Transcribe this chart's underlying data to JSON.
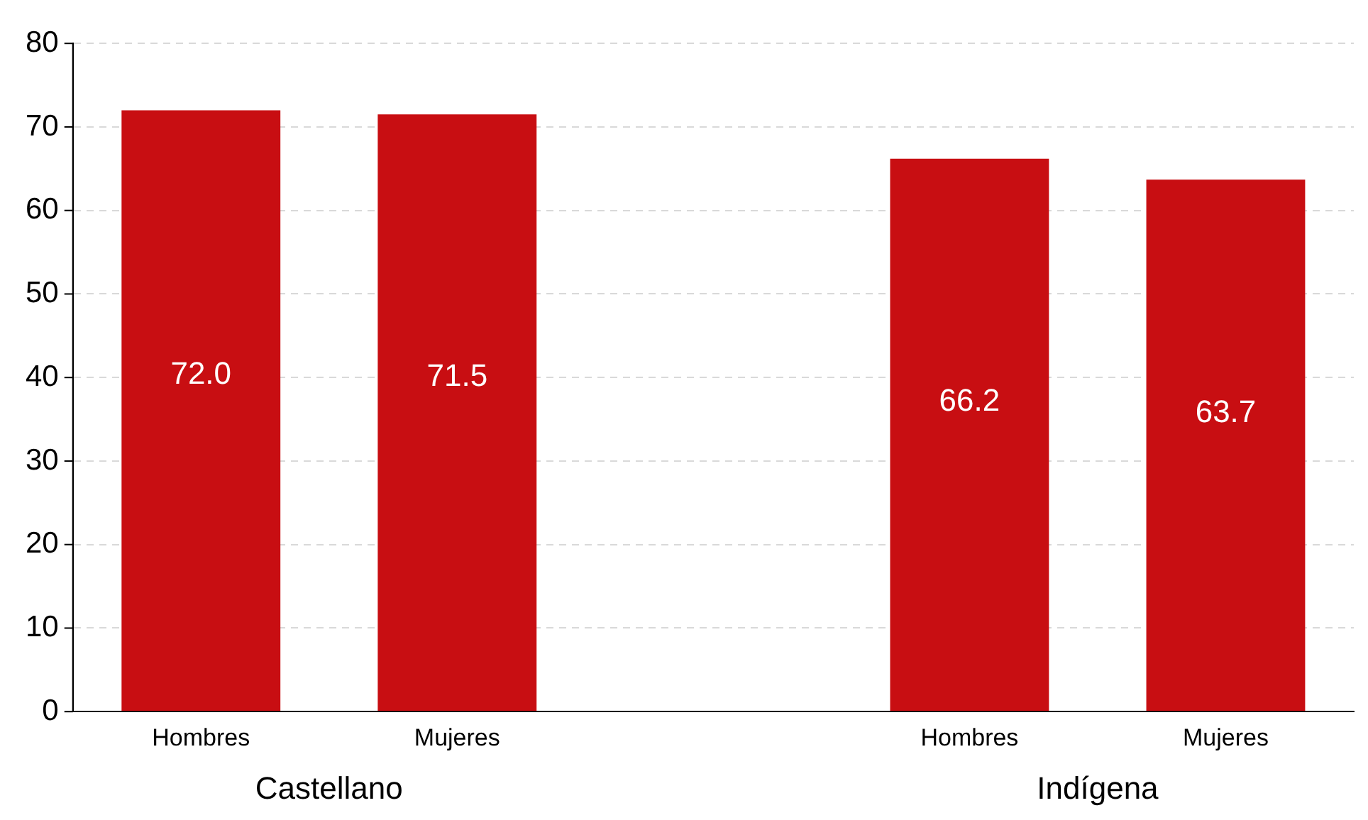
{
  "chart_data": {
    "type": "bar",
    "categories": [
      "Hombres",
      "Mujeres",
      null,
      "Hombres",
      "Mujeres"
    ],
    "values": [
      72.0,
      71.5,
      null,
      66.2,
      63.7
    ],
    "color": "#c80e12",
    "ylim": [
      0,
      80
    ],
    "yticks": [
      0,
      10,
      20,
      30,
      40,
      50,
      60,
      70,
      80
    ],
    "value_labels": [
      "72.0",
      "71.5",
      null,
      "66.2",
      "63.7"
    ],
    "grid": "y",
    "legend": false,
    "annotations": [
      "Castellano",
      "Indígena"
    ]
  }
}
